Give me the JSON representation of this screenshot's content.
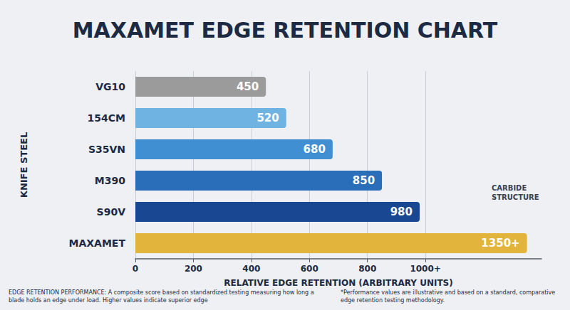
{
  "chart_data": {
    "type": "bar",
    "title": "MAXAMET EDGE RETENTION CHART",
    "orientation": "horizontal",
    "categories": [
      "VG10",
      "154CM",
      "S35VN",
      "M390",
      "S90V",
      "MAXAMET"
    ],
    "values": [
      450,
      520,
      680,
      850,
      980,
      1350
    ],
    "value_labels": [
      "450",
      "520",
      "680",
      "850",
      "980",
      "1350+"
    ],
    "colors": [
      "#9b9b9b",
      "#6fb3e3",
      "#3f8fd2",
      "#2a6db8",
      "#1a4791",
      "#e2b43c"
    ],
    "xlabel": "RELATIVE EDGE RETENTION (ARBITRARY UNITS)",
    "ylabel": "KNIFE STEEL",
    "xlim": [
      0,
      1400
    ],
    "xticks": [
      0,
      200,
      400,
      600,
      800,
      {
        "value": 1000,
        "label": "1000+"
      }
    ],
    "grid": true,
    "data_labels": true,
    "annotations": [
      "CARBIDE STRUCTURE",
      "EDGE RETENTION PERFORMANCE: A composite score based on standardized testing measuring how long a blade holds an edge under load. Higher values indicate superior edge",
      "*Performance values are illustrative and based on a standard, comparative edge retention testing methodology."
    ]
  }
}
